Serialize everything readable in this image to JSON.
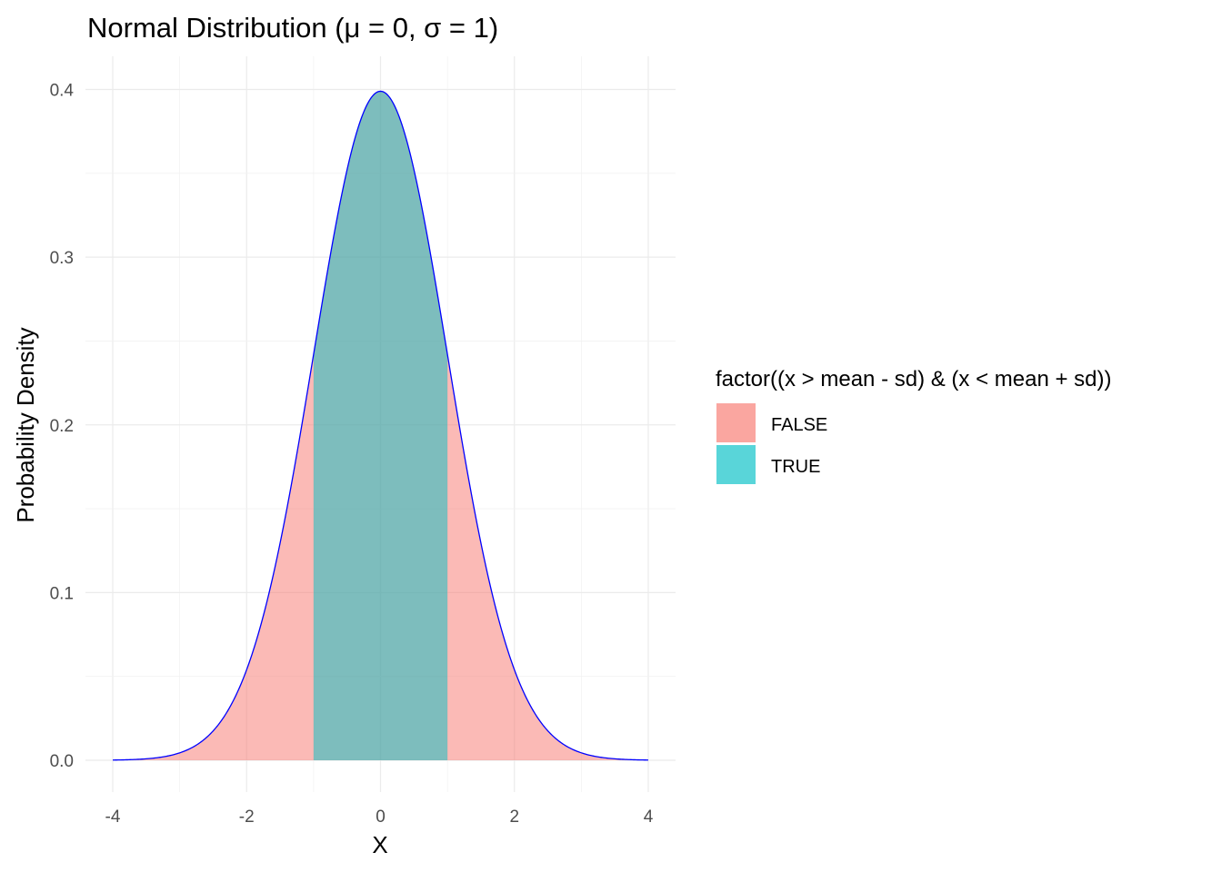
{
  "chart_data": {
    "type": "area",
    "title": "Normal Distribution (μ = 0, σ = 1)",
    "xlabel": "X",
    "ylabel": "Probability Density",
    "distribution": {
      "mean": 0,
      "sd": 1
    },
    "xlim": [
      -4,
      4
    ],
    "ylim": [
      0,
      0.4
    ],
    "x_ticks": [
      -4,
      -2,
      0,
      2,
      4
    ],
    "x_tick_labels": [
      "-4",
      "-2",
      "0",
      "2",
      "4"
    ],
    "y_ticks": [
      0,
      0.1,
      0.2,
      0.3,
      0.4
    ],
    "y_tick_labels": [
      "0.0",
      "0.1",
      "0.2",
      "0.3",
      "0.4"
    ],
    "grid": true,
    "legend": {
      "title": "factor((x > mean - sd) & (x < mean + sd))",
      "placement": "right",
      "items": [
        {
          "label": "FALSE",
          "color": "#F8766D"
        },
        {
          "label": "TRUE",
          "color": "#00BFC4"
        }
      ]
    },
    "series": [
      {
        "name": "FALSE",
        "color": "#F8766D",
        "x_range": [
          -4,
          4
        ]
      },
      {
        "name": "TRUE",
        "color": "#00BFC4",
        "x_range": [
          -1,
          1
        ]
      }
    ],
    "curve_color": "#0000FF",
    "colors": {
      "false_fill": "#F8766D",
      "true_fill": "#00BFC4",
      "curve": "#0000FF",
      "grid_major": "#EBEBEB",
      "grid_minor": "#F2F2F2"
    }
  }
}
